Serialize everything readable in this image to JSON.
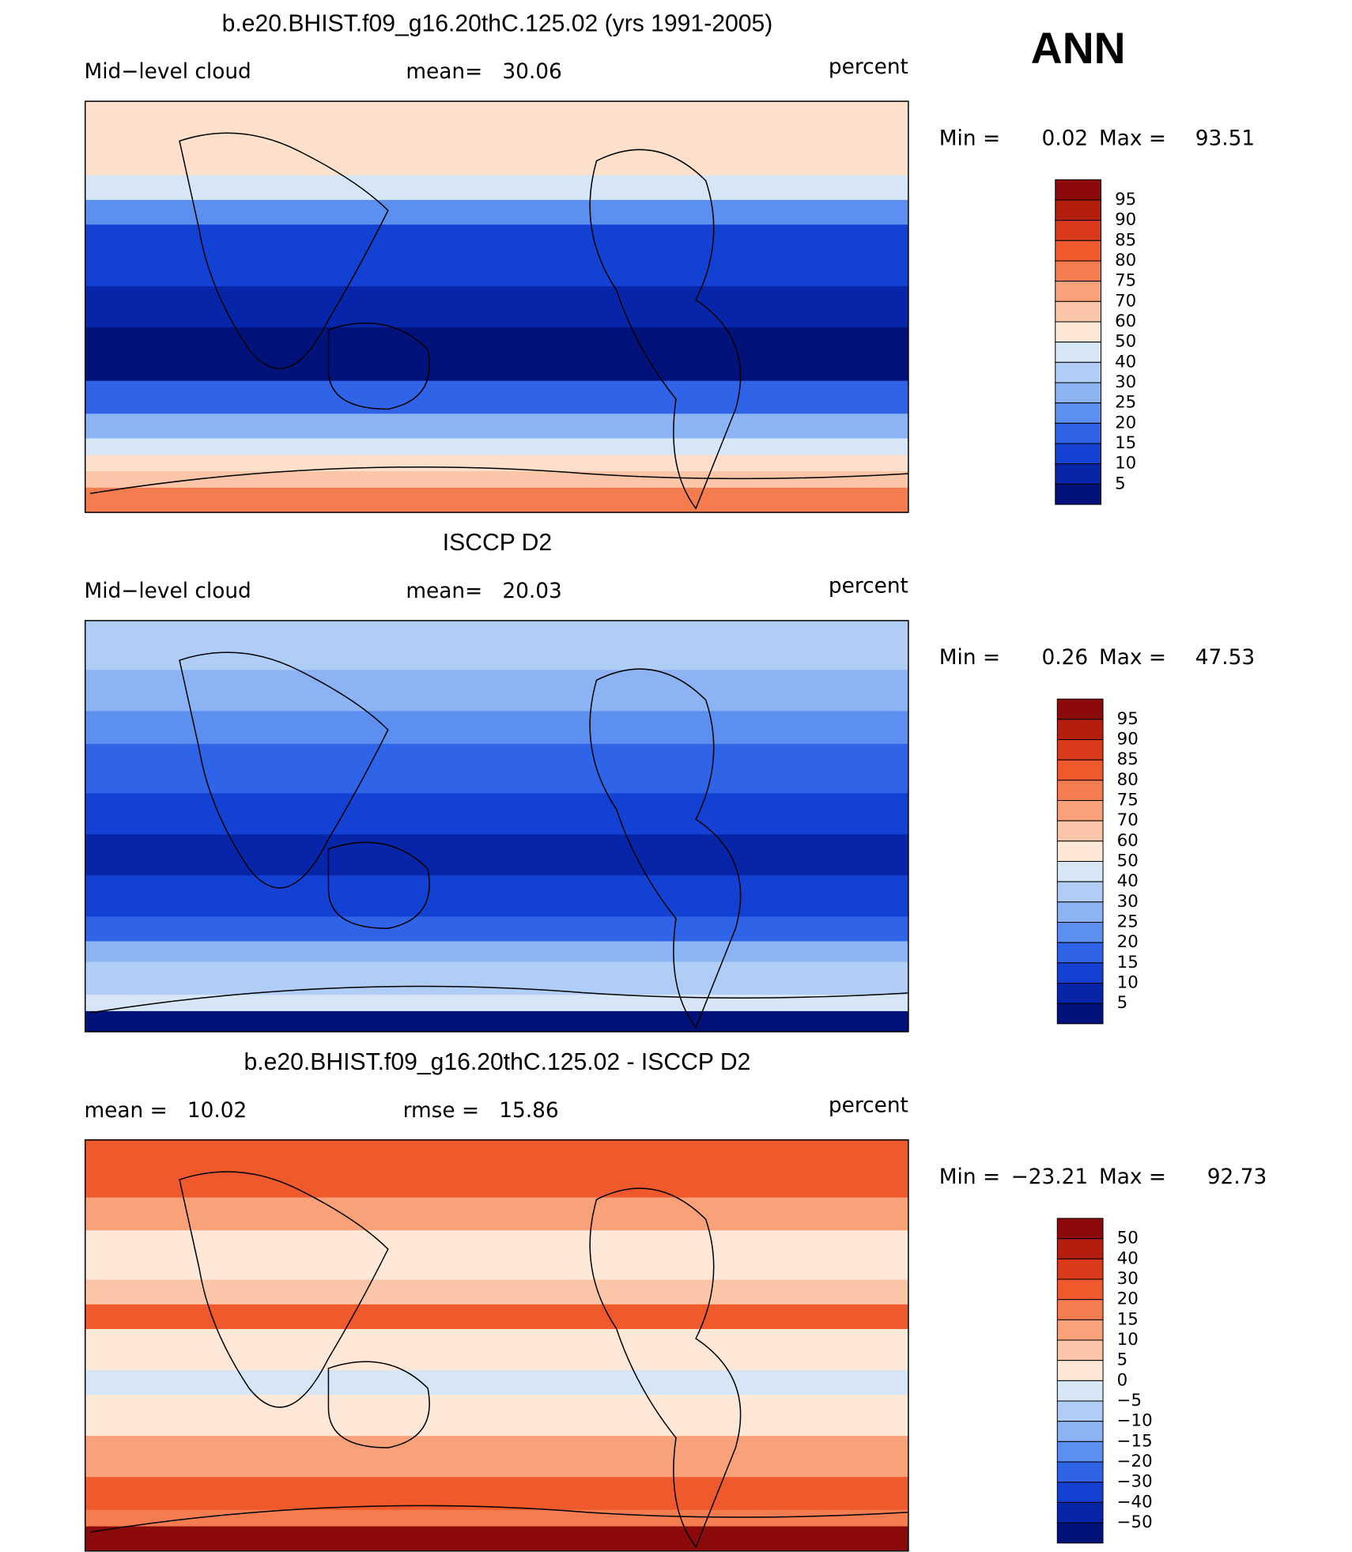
{
  "header": {
    "season": "ANN"
  },
  "panels": [
    {
      "title": "b.e20.BHIST.f09_g16.20thC.125.02 (yrs 1991-2005)",
      "left_label": "Mid−level cloud",
      "center_label": "mean=   30.06",
      "right_label": "percent",
      "min_label": "Min =",
      "min_value": "0.02",
      "max_label": "Max =",
      "max_value": "93.51",
      "colorbar": {
        "levels": [
          "95",
          "90",
          "85",
          "80",
          "75",
          "70",
          "60",
          "50",
          "40",
          "30",
          "25",
          "20",
          "15",
          "10",
          "5"
        ],
        "colors": [
          "#8c0a0a",
          "#b41e0f",
          "#d93a1a",
          "#f0592b",
          "#f57c4f",
          "#f9a27a",
          "#fbc6a8",
          "#fde8d8",
          "#d6e6f7",
          "#b0cdf5",
          "#8cb4f5",
          "#5c8ff0",
          "#2f63e8",
          "#1241d4",
          "#0725a8",
          "#01127a"
        ]
      }
    },
    {
      "title": "ISCCP D2",
      "left_label": "Mid−level cloud",
      "center_label": "mean=   20.03",
      "right_label": "percent",
      "min_label": "Min =",
      "min_value": "0.26",
      "max_label": "Max =",
      "max_value": "47.53",
      "colorbar": {
        "levels": [
          "95",
          "90",
          "85",
          "80",
          "75",
          "70",
          "60",
          "50",
          "40",
          "30",
          "25",
          "20",
          "15",
          "10",
          "5"
        ],
        "colors": [
          "#8c0a0a",
          "#b41e0f",
          "#d93a1a",
          "#f0592b",
          "#f57c4f",
          "#f9a27a",
          "#fbc6a8",
          "#fde8d8",
          "#d6e6f7",
          "#b0cdf5",
          "#8cb4f5",
          "#5c8ff0",
          "#2f63e8",
          "#1241d4",
          "#0725a8",
          "#01127a"
        ]
      }
    },
    {
      "title": "b.e20.BHIST.f09_g16.20thC.125.02 - ISCCP D2",
      "left_label": "mean =   10.02",
      "center_label": "rmse =   15.86",
      "right_label": "percent",
      "min_label": "Min =",
      "min_value": "−23.21",
      "max_label": "Max =",
      "max_value": "92.73",
      "colorbar": {
        "levels": [
          "50",
          "40",
          "30",
          "20",
          "15",
          "10",
          "5",
          "0",
          "−5",
          "−10",
          "−15",
          "−20",
          "−30",
          "−40",
          "−50"
        ],
        "colors": [
          "#8c0a0a",
          "#b41e0f",
          "#d93a1a",
          "#f0592b",
          "#f57c4f",
          "#f9a27a",
          "#fbc6a8",
          "#fde8d8",
          "#d6e6f7",
          "#b0cdf5",
          "#8cb4f5",
          "#5c8ff0",
          "#2f63e8",
          "#1241d4",
          "#0725a8",
          "#01127a"
        ]
      }
    }
  ]
}
